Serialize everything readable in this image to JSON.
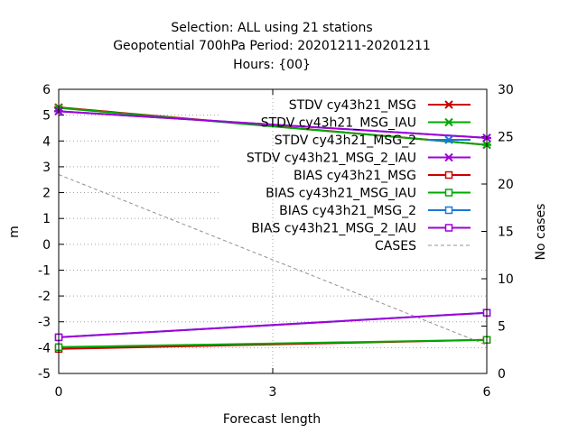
{
  "chart_data": {
    "type": "line",
    "title_lines": [
      "Selection: ALL using    21 stations",
      "Geopotential 700hPa   Period: 20201211-20201211",
      "Hours: {00}"
    ],
    "xlabel": "Forecast length",
    "ylabel": "m",
    "y2label": "No cases",
    "x": [
      0,
      3,
      6
    ],
    "xlim": [
      0,
      6
    ],
    "ylim": [
      -5,
      6
    ],
    "y2lim": [
      0,
      30
    ],
    "x_ticks": [
      "0",
      "3",
      "6"
    ],
    "y_ticks": [
      "-5",
      "-4",
      "-3",
      "-2",
      "-1",
      "0",
      "1",
      "2",
      "3",
      "4",
      "5",
      "6"
    ],
    "y2_ticks": [
      "0",
      "5",
      "10",
      "15",
      "20",
      "25",
      "30"
    ],
    "grid": true,
    "legend_position": "top-right",
    "series": [
      {
        "name": "STDV cy43h21_MSG",
        "color": "#cc0000",
        "marker": "x-star",
        "axis": "y",
        "x": [
          0,
          6
        ],
        "values": [
          5.3,
          3.85
        ]
      },
      {
        "name": "STDV cy43h21_MSG_IAU",
        "color": "#00a800",
        "marker": "x-star",
        "axis": "y",
        "x": [
          0,
          6
        ],
        "values": [
          5.28,
          3.85
        ]
      },
      {
        "name": "STDV cy43h21_MSG_2",
        "color": "#1878d8",
        "marker": "x-star",
        "axis": "y",
        "x": [
          0,
          6
        ],
        "values": [
          5.15,
          4.12
        ]
      },
      {
        "name": "STDV cy43h21_MSG_2_IAU",
        "color": "#a000d8",
        "marker": "x-star",
        "axis": "y",
        "x": [
          0,
          6
        ],
        "values": [
          5.15,
          4.12
        ]
      },
      {
        "name": "BIAS cy43h21_MSG",
        "color": "#cc0000",
        "marker": "square",
        "axis": "y",
        "x": [
          0,
          6
        ],
        "values": [
          -4.05,
          -3.7
        ]
      },
      {
        "name": "BIAS cy43h21_MSG_IAU",
        "color": "#00a800",
        "marker": "square",
        "axis": "y",
        "x": [
          0,
          6
        ],
        "values": [
          -3.98,
          -3.7
        ]
      },
      {
        "name": "BIAS cy43h21_MSG_2",
        "color": "#1878d8",
        "marker": "square",
        "axis": "y",
        "x": [
          0,
          6
        ],
        "values": [
          -3.6,
          -2.65
        ]
      },
      {
        "name": "BIAS cy43h21_MSG_2_IAU",
        "color": "#a000d8",
        "marker": "square",
        "axis": "y",
        "x": [
          0,
          6
        ],
        "values": [
          -3.6,
          -2.65
        ]
      },
      {
        "name": "CASES",
        "color": "#909090",
        "marker": "none",
        "axis": "y2",
        "dashed": true,
        "x": [
          0,
          6
        ],
        "values": [
          21,
          3
        ]
      }
    ]
  }
}
